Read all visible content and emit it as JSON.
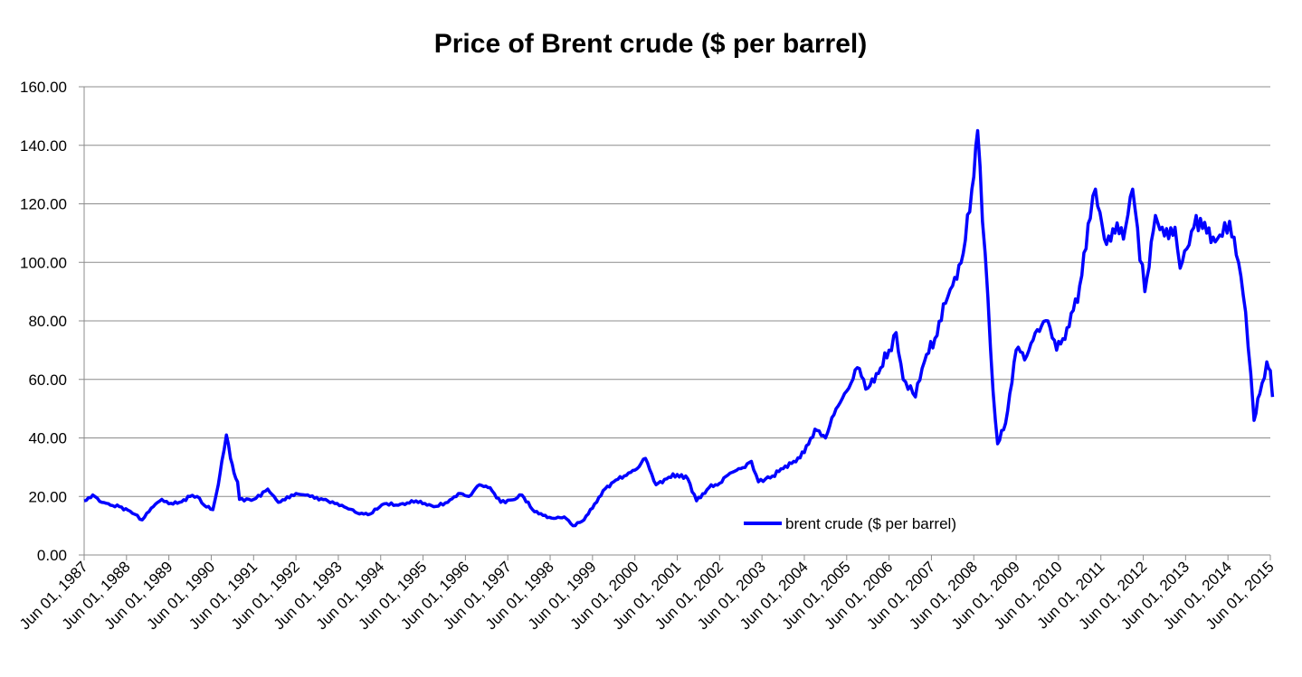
{
  "chart_data": {
    "type": "line",
    "title": "Price of Brent crude ($ per barrel)",
    "xlabel": "",
    "ylabel": "",
    "ylim": [
      0,
      160
    ],
    "yticks": [
      "0.00",
      "20.00",
      "40.00",
      "60.00",
      "80.00",
      "100.00",
      "120.00",
      "140.00",
      "160.00"
    ],
    "xlim": [
      "1987-06-01",
      "2015-06-01"
    ],
    "xticks": [
      "Jun 01, 1987",
      "Jun 01, 1988",
      "Jun 01, 1989",
      "Jun 01, 1990",
      "Jun 01, 1991",
      "Jun 01, 1992",
      "Jun 01, 1993",
      "Jun 01, 1994",
      "Jun 01, 1995",
      "Jun 01, 1996",
      "Jun 01, 1997",
      "Jun 01, 1998",
      "Jun 01, 1999",
      "Jun 01, 2000",
      "Jun 01, 2001",
      "Jun 01, 2002",
      "Jun 01, 2003",
      "Jun 01, 2004",
      "Jun 01, 2005",
      "Jun 01, 2006",
      "Jun 01, 2007",
      "Jun 01, 2008",
      "Jun 01, 2009",
      "Jun 01, 2010",
      "Jun 01, 2011",
      "Jun 01, 2012",
      "Jun 01, 2013",
      "Jun 01, 2014",
      "Jun 01, 2015"
    ],
    "grid": true,
    "legend_position": "bottom-center",
    "series": [
      {
        "name": "brent crude ($ per barrel)",
        "color": "#0000ff",
        "points": [
          [
            "1987-06-01",
            18.5
          ],
          [
            "1987-08-15",
            20.5
          ],
          [
            "1987-11-01",
            18.0
          ],
          [
            "1988-01-15",
            17.0
          ],
          [
            "1988-04-01",
            16.5
          ],
          [
            "1988-07-01",
            15.0
          ],
          [
            "1988-10-15",
            12.0
          ],
          [
            "1989-01-01",
            16.0
          ],
          [
            "1989-04-01",
            19.0
          ],
          [
            "1989-06-01",
            17.5
          ],
          [
            "1989-09-01",
            18.0
          ],
          [
            "1989-12-01",
            20.0
          ],
          [
            "1990-02-01",
            20.0
          ],
          [
            "1990-04-01",
            17.0
          ],
          [
            "1990-06-15",
            15.5
          ],
          [
            "1990-08-01",
            24.0
          ],
          [
            "1990-09-01",
            32.0
          ],
          [
            "1990-10-10",
            41.0
          ],
          [
            "1990-11-15",
            33.0
          ],
          [
            "1990-12-15",
            28.0
          ],
          [
            "1991-01-15",
            25.0
          ],
          [
            "1991-02-01",
            19.0
          ],
          [
            "1991-06-01",
            19.0
          ],
          [
            "1991-10-01",
            22.5
          ],
          [
            "1992-01-01",
            18.0
          ],
          [
            "1992-06-01",
            21.0
          ],
          [
            "1992-10-01",
            20.0
          ],
          [
            "1993-03-01",
            18.5
          ],
          [
            "1993-07-01",
            17.0
          ],
          [
            "1993-12-01",
            14.0
          ],
          [
            "1994-03-01",
            14.0
          ],
          [
            "1994-07-01",
            17.5
          ],
          [
            "1994-11-01",
            17.0
          ],
          [
            "1995-04-01",
            18.5
          ],
          [
            "1995-09-01",
            16.5
          ],
          [
            "1996-01-01",
            18.0
          ],
          [
            "1996-04-01",
            21.0
          ],
          [
            "1996-07-01",
            20.0
          ],
          [
            "1996-10-01",
            24.0
          ],
          [
            "1997-01-01",
            23.0
          ],
          [
            "1997-04-01",
            18.0
          ],
          [
            "1997-08-01",
            19.0
          ],
          [
            "1997-10-01",
            20.5
          ],
          [
            "1998-01-01",
            15.5
          ],
          [
            "1998-04-01",
            13.5
          ],
          [
            "1998-07-01",
            12.5
          ],
          [
            "1998-10-01",
            13.0
          ],
          [
            "1998-12-15",
            10.0
          ],
          [
            "1999-03-01",
            11.5
          ],
          [
            "1999-06-01",
            16.0
          ],
          [
            "1999-09-01",
            22.0
          ],
          [
            "1999-12-01",
            25.0
          ],
          [
            "2000-03-01",
            27.0
          ],
          [
            "2000-06-01",
            29.0
          ],
          [
            "2000-09-01",
            33.0
          ],
          [
            "2000-12-01",
            24.0
          ],
          [
            "2001-03-01",
            26.0
          ],
          [
            "2001-06-01",
            27.5
          ],
          [
            "2001-09-01",
            26.0
          ],
          [
            "2001-11-15",
            18.5
          ],
          [
            "2002-03-01",
            23.0
          ],
          [
            "2002-06-01",
            24.5
          ],
          [
            "2002-09-01",
            28.0
          ],
          [
            "2002-12-01",
            29.5
          ],
          [
            "2003-03-01",
            32.0
          ],
          [
            "2003-05-01",
            25.0
          ],
          [
            "2003-09-01",
            27.0
          ],
          [
            "2003-12-01",
            29.5
          ],
          [
            "2004-03-01",
            32.0
          ],
          [
            "2004-06-01",
            35.0
          ],
          [
            "2004-09-01",
            43.0
          ],
          [
            "2004-12-01",
            40.0
          ],
          [
            "2005-03-01",
            50.0
          ],
          [
            "2005-06-01",
            56.0
          ],
          [
            "2005-09-01",
            64.0
          ],
          [
            "2005-12-01",
            57.0
          ],
          [
            "2006-03-01",
            62.0
          ],
          [
            "2006-06-01",
            70.0
          ],
          [
            "2006-08-01",
            76.0
          ],
          [
            "2006-10-01",
            60.0
          ],
          [
            "2007-01-15",
            54.0
          ],
          [
            "2007-04-01",
            66.0
          ],
          [
            "2007-07-01",
            74.0
          ],
          [
            "2007-10-01",
            86.0
          ],
          [
            "2007-12-01",
            92.0
          ],
          [
            "2008-03-01",
            103.0
          ],
          [
            "2008-05-15",
            125.0
          ],
          [
            "2008-07-04",
            145.0
          ],
          [
            "2008-08-15",
            114.0
          ],
          [
            "2008-10-01",
            88.0
          ],
          [
            "2008-11-15",
            56.0
          ],
          [
            "2008-12-24",
            38.0
          ],
          [
            "2009-03-01",
            45.0
          ],
          [
            "2009-06-01",
            70.0
          ],
          [
            "2009-09-01",
            68.0
          ],
          [
            "2009-12-01",
            77.0
          ],
          [
            "2010-03-01",
            80.0
          ],
          [
            "2010-05-15",
            70.0
          ],
          [
            "2010-09-01",
            78.0
          ],
          [
            "2010-12-01",
            92.0
          ],
          [
            "2011-03-01",
            115.0
          ],
          [
            "2011-04-15",
            125.0
          ],
          [
            "2011-07-01",
            108.0
          ],
          [
            "2011-10-01",
            110.0
          ],
          [
            "2012-01-01",
            112.0
          ],
          [
            "2012-03-01",
            125.0
          ],
          [
            "2012-06-15",
            90.0
          ],
          [
            "2012-09-15",
            116.0
          ],
          [
            "2012-12-01",
            109.0
          ],
          [
            "2013-03-01",
            112.0
          ],
          [
            "2013-04-15",
            98.0
          ],
          [
            "2013-07-01",
            106.0
          ],
          [
            "2013-09-01",
            116.0
          ],
          [
            "2013-12-01",
            110.0
          ],
          [
            "2014-03-01",
            108.0
          ],
          [
            "2014-06-15",
            114.0
          ],
          [
            "2014-09-01",
            100.0
          ],
          [
            "2014-11-01",
            83.0
          ],
          [
            "2014-12-15",
            62.0
          ],
          [
            "2015-01-13",
            46.0
          ],
          [
            "2015-03-01",
            55.0
          ],
          [
            "2015-05-01",
            66.0
          ],
          [
            "2015-06-01",
            63.0
          ],
          [
            "2015-06-20",
            54.0
          ]
        ]
      }
    ]
  }
}
